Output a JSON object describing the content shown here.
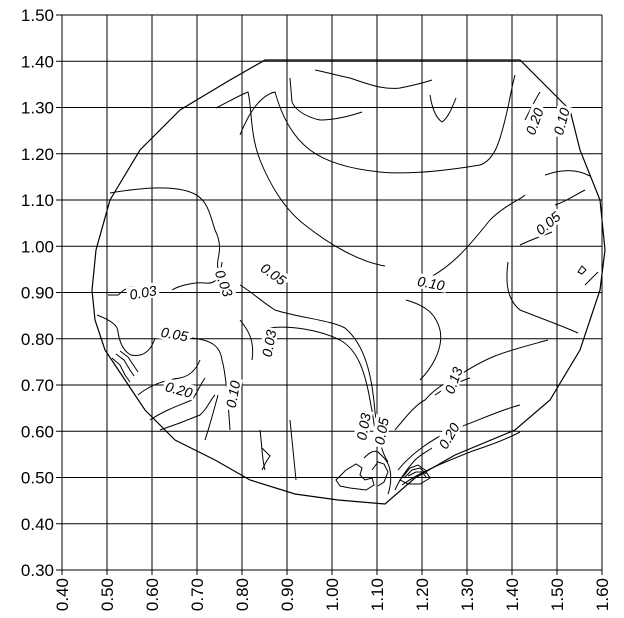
{
  "chart_data": {
    "type": "contour",
    "title": "",
    "xlabel": "",
    "ylabel": "",
    "xlim": [
      0.4,
      1.6
    ],
    "ylim": [
      0.3,
      1.5
    ],
    "grid": true,
    "x_ticks": [
      "0.40",
      "0.50",
      "0.60",
      "0.70",
      "0.80",
      "0.90",
      "1.00",
      "1.10",
      "1.20",
      "1.30",
      "1.40",
      "1.50",
      "1.60"
    ],
    "y_ticks": [
      "0.30",
      "0.40",
      "0.50",
      "0.60",
      "0.70",
      "0.80",
      "0.90",
      "1.00",
      "1.10",
      "1.20",
      "1.30",
      "1.40",
      "1.50"
    ],
    "contour_labels": [
      {
        "text": "0.03",
        "x": 0.58,
        "y": 0.9
      },
      {
        "text": "0.03",
        "x": 0.76,
        "y": 0.92
      },
      {
        "text": "0.05",
        "x": 0.87,
        "y": 0.94
      },
      {
        "text": "0.10",
        "x": 1.22,
        "y": 0.92
      },
      {
        "text": "0.05",
        "x": 1.48,
        "y": 1.05
      },
      {
        "text": "0.20",
        "x": 1.45,
        "y": 1.27
      },
      {
        "text": "0.10",
        "x": 1.51,
        "y": 1.27
      },
      {
        "text": "0.05",
        "x": 0.65,
        "y": 0.81
      },
      {
        "text": "0.03",
        "x": 0.86,
        "y": 0.79
      },
      {
        "text": "0.20",
        "x": 0.66,
        "y": 0.69
      },
      {
        "text": "0.10",
        "x": 0.78,
        "y": 0.68
      },
      {
        "text": "0.13",
        "x": 1.27,
        "y": 0.71
      },
      {
        "text": "0.03",
        "x": 1.07,
        "y": 0.61
      },
      {
        "text": "0.05",
        "x": 1.11,
        "y": 0.6
      },
      {
        "text": "0.20",
        "x": 1.26,
        "y": 0.59
      }
    ]
  }
}
